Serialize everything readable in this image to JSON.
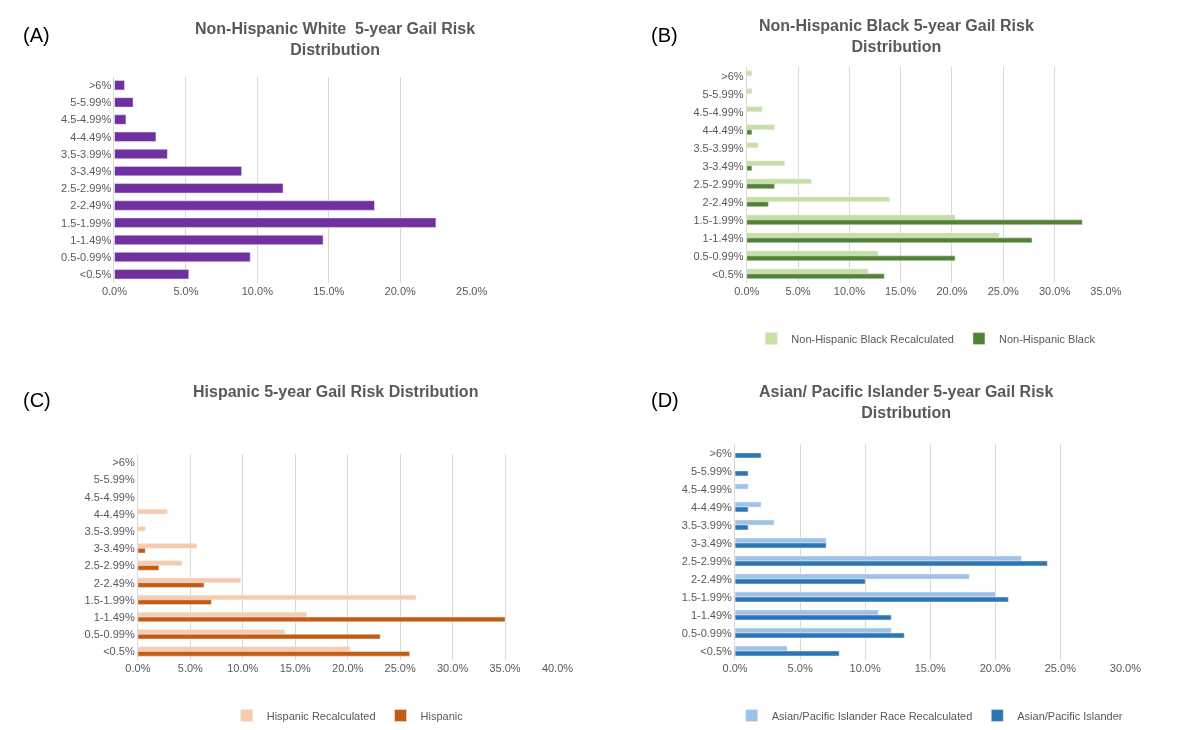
{
  "chart_data": [
    {
      "type": "bar",
      "orientation": "horizontal",
      "title": "Non-Hispanic White  5-year Gail Risk Distribution",
      "annotations": [
        "(A)"
      ],
      "categories": [
        ">6%",
        "5-5.99%",
        "4.5-4.99%",
        "4-4.49%",
        "3.5-3.99%",
        "3-3.49%",
        "2.5-2.99%",
        "2-2.49%",
        "1.5-1.99%",
        "1-1.49%",
        "0.5-0.99%",
        "<0.5%"
      ],
      "series": [
        {
          "color": "#7030a0",
          "values": [
            0.7,
            1.3,
            0.8,
            2.9,
            3.7,
            8.9,
            11.8,
            18.2,
            22.5,
            14.6,
            9.5,
            5.2
          ]
        }
      ],
      "xlim": [
        0,
        25
      ],
      "xticks": [
        {
          "value": 0,
          "label": "0.0%"
        },
        {
          "value": 5,
          "label": "5.0%"
        },
        {
          "value": 10,
          "label": "10.0%"
        },
        {
          "value": 15,
          "label": "15.0%"
        },
        {
          "value": 20,
          "label": "20.0%"
        },
        {
          "value": 25,
          "label": "25.0%"
        }
      ],
      "grid": "x",
      "legend": false
    },
    {
      "type": "bar",
      "orientation": "horizontal",
      "title": "Non-Hispanic Black 5-year Gail Risk Distribution",
      "annotations": [
        "(B)"
      ],
      "categories": [
        ">6%",
        "5-5.99%",
        "4.5-4.99%",
        "4-4.49%",
        "3.5-3.99%",
        "3-3.49%",
        "2.5-2.99%",
        "2-2.49%",
        "1.5-1.99%",
        "1-1.49%",
        "0.5-0.99%",
        "<0.5%"
      ],
      "series": [
        {
          "name": "Non-Hispanic Black Recalculated",
          "color": "#c5e0a0",
          "values": [
            0.5,
            0.5,
            1.5,
            2.7,
            1.1,
            3.7,
            6.3,
            13.9,
            20.3,
            24.6,
            12.8,
            11.8
          ]
        },
        {
          "name": "Non-Hispanic Black",
          "color": "#548235",
          "values": [
            null,
            null,
            null,
            0.5,
            null,
            0.5,
            2.7,
            2.1,
            32.7,
            27.8,
            20.3,
            13.4
          ]
        }
      ],
      "xlim": [
        0,
        35
      ],
      "xticks": [
        {
          "value": 0,
          "label": "0.0%"
        },
        {
          "value": 5,
          "label": "5.0%"
        },
        {
          "value": 10,
          "label": "10.0%"
        },
        {
          "value": 15,
          "label": "15.0%"
        },
        {
          "value": 20,
          "label": "20.0%"
        },
        {
          "value": 25,
          "label": "25.0%"
        },
        {
          "value": 30,
          "label": "30.0%"
        },
        {
          "value": 35,
          "label": "35.0%"
        }
      ],
      "grid": "x",
      "legend": "bottom"
    },
    {
      "type": "bar",
      "orientation": "horizontal",
      "title": "Hispanic 5-year Gail Risk Distribution",
      "annotations": [
        "(C)"
      ],
      "categories": [
        ">6%",
        "5-5.99%",
        "4.5-4.99%",
        "4-4.49%",
        "3.5-3.99%",
        "3-3.49%",
        "2.5-2.99%",
        "2-2.49%",
        "1.5-1.99%",
        "1-1.49%",
        "0.5-0.99%",
        "<0.5%"
      ],
      "series": [
        {
          "name": "Hispanic Recalculated",
          "color": "#f8cbad",
          "values": [
            null,
            null,
            null,
            2.8,
            0.7,
            5.6,
            4.2,
            9.8,
            26.5,
            16.1,
            14.0,
            20.2
          ]
        },
        {
          "name": "Hispanic",
          "color": "#c55a11",
          "values": [
            null,
            null,
            null,
            null,
            null,
            0.7,
            2.0,
            6.3,
            7.0,
            35.0,
            23.1,
            25.9
          ]
        }
      ],
      "xlim": [
        0,
        40
      ],
      "xticks": [
        {
          "value": 0,
          "label": "0.0%"
        },
        {
          "value": 5,
          "label": "5.0%"
        },
        {
          "value": 10,
          "label": "10.0%"
        },
        {
          "value": 15,
          "label": "15.0%"
        },
        {
          "value": 20,
          "label": "20.0%"
        },
        {
          "value": 25,
          "label": "25.0%"
        },
        {
          "value": 30,
          "label": "30.0%"
        },
        {
          "value": 35,
          "label": "35.0%"
        },
        {
          "value": 40,
          "label": "40.0%"
        }
      ],
      "grid": "x",
      "legend": "bottom"
    },
    {
      "type": "bar",
      "orientation": "horizontal",
      "title": "Asian/ Pacific Islander 5-year Gail Risk Distribution",
      "annotations": [
        "(D)"
      ],
      "categories": [
        ">6%",
        "5-5.99%",
        "4.5-4.99%",
        "4-4.49%",
        "3.5-3.99%",
        "3-3.49%",
        "2.5-2.99%",
        "2-2.49%",
        "1.5-1.99%",
        "1-1.49%",
        "0.5-0.99%",
        "<0.5%"
      ],
      "series": [
        {
          "name": "Asian/Pacific Islander Race Recalculated",
          "color": "#9dc3e6",
          "values": [
            null,
            null,
            1,
            2,
            3,
            7,
            22,
            18,
            20,
            11,
            12,
            4
          ]
        },
        {
          "name": "Asian/Pacific Islander",
          "color": "#2e75b6",
          "values": [
            2,
            1,
            null,
            1,
            1,
            7,
            24,
            10,
            21,
            12,
            13,
            8
          ]
        }
      ],
      "xlim": [
        0,
        30
      ],
      "xticks": [
        {
          "value": 0,
          "label": "0.0%"
        },
        {
          "value": 5,
          "label": "5.0%"
        },
        {
          "value": 10,
          "label": "10.0%"
        },
        {
          "value": 15,
          "label": "15.0%"
        },
        {
          "value": 20,
          "label": "20.0%"
        },
        {
          "value": 25,
          "label": "25.0%"
        },
        {
          "value": 30,
          "label": "30.0%"
        }
      ],
      "grid": "x",
      "legend": "bottom"
    }
  ]
}
